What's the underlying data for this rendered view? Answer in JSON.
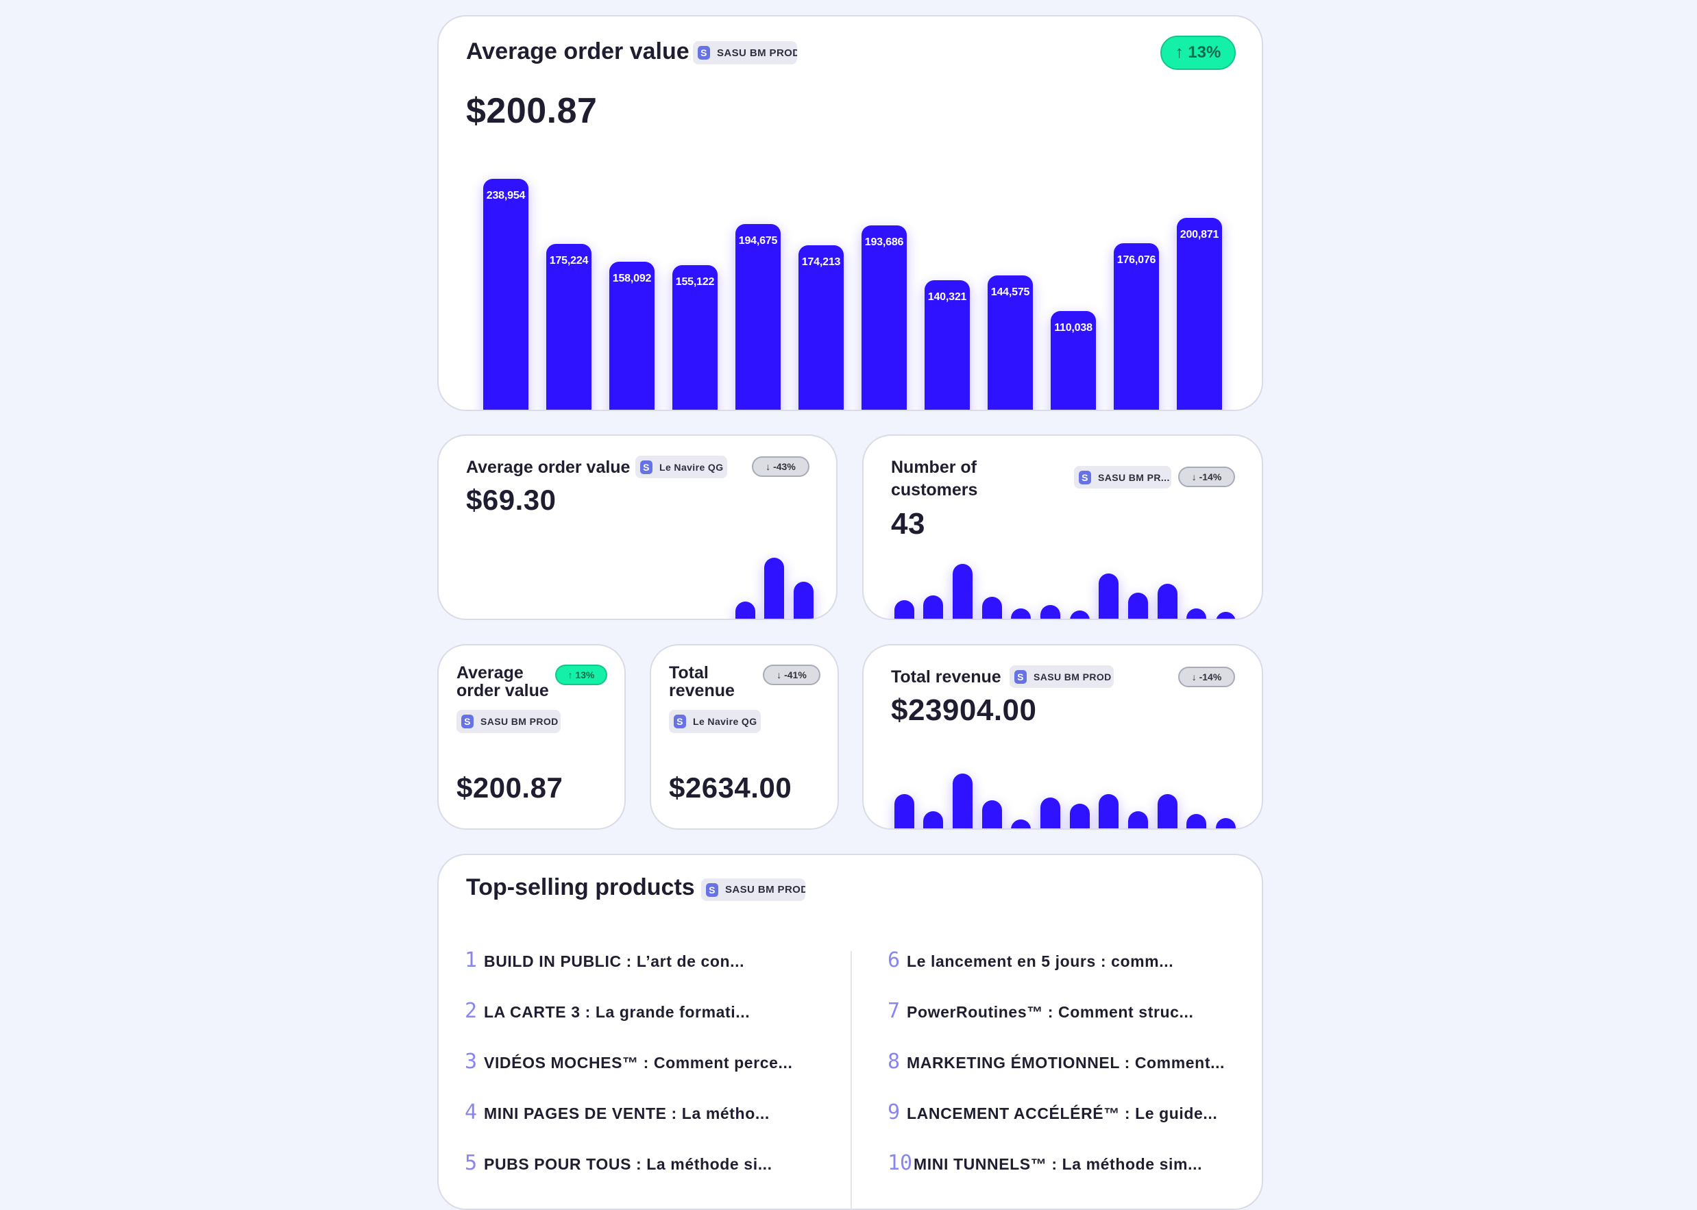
{
  "colors": {
    "accent": "#2f12ff",
    "up": "#14f0a8",
    "stripe": "#6772e5",
    "background": "#f1f4fd"
  },
  "stripe_mark": "S",
  "main_card": {
    "title": "Average order value",
    "account": "SASU BM PROD",
    "trend": "↑ 13%",
    "value": "$200.87",
    "chart_data": {
      "type": "bar",
      "values": [
        238954,
        175224,
        158092,
        155122,
        194675,
        174213,
        193686,
        140321,
        144575,
        110038,
        176076,
        200871
      ],
      "labels": [
        "238,954",
        "175,224",
        "158,092",
        "155,122",
        "194,675",
        "174,213",
        "193,686",
        "140,321",
        "144,575",
        "110,038",
        "176,076",
        "200,871"
      ],
      "ylim": [
        0,
        238954
      ]
    }
  },
  "aov_card": {
    "title": "Average order value",
    "account": "Le Navire QG",
    "trend": "↓ -43%",
    "value": "$69.30",
    "chart_data": {
      "type": "bar",
      "values": [
        0,
        0,
        0,
        0,
        0,
        0,
        0,
        0,
        0,
        0.37,
        1.0,
        0.66
      ]
    }
  },
  "customers_card": {
    "title_line1": "Number of",
    "title_line2": "customers",
    "account": "SASU BM PR...",
    "trend": "↓ -14%",
    "value": "43",
    "chart_data": {
      "type": "bar",
      "values": [
        0.48,
        0.55,
        1.0,
        0.53,
        0.36,
        0.41,
        0.33,
        0.86,
        0.59,
        0.72,
        0.36,
        0.31
      ]
    }
  },
  "small_aov_card": {
    "title_line1": "Average",
    "title_line2": "order value",
    "account": "SASU BM PROD",
    "trend": "↑ 13%",
    "value": "$200.87"
  },
  "small_revenue_card": {
    "title_line1": "Total",
    "title_line2": "revenue",
    "account": "Le Navire QG",
    "trend": "↓ -41%",
    "value": "$2634.00"
  },
  "revenue_card": {
    "title": "Total revenue",
    "account": "SASU BM PROD",
    "trend": "↓ -14%",
    "value": "$23904.00",
    "chart_data": {
      "type": "bar",
      "values": [
        0.71,
        0.46,
        1.0,
        0.62,
        0.34,
        0.66,
        0.57,
        0.71,
        0.46,
        0.71,
        0.42,
        0.36
      ]
    }
  },
  "products_card": {
    "title": "Top-selling products",
    "account": "SASU BM PROD",
    "left": [
      {
        "rank": "1",
        "name": "BUILD IN PUBLIC : L’art de con..."
      },
      {
        "rank": "2",
        "name": "LA CARTE 3 : La grande formati..."
      },
      {
        "rank": "3",
        "name": "VIDÉOS MOCHES™ : Comment perce..."
      },
      {
        "rank": "4",
        "name": "MINI PAGES DE VENTE : La métho..."
      },
      {
        "rank": "5",
        "name": "PUBS POUR TOUS : La méthode si..."
      }
    ],
    "right": [
      {
        "rank": "6",
        "name": "Le lancement en 5 jours : comm..."
      },
      {
        "rank": "7",
        "name": "PowerRoutines™ : Comment struc..."
      },
      {
        "rank": "8",
        "name": "MARKETING ÉMOTIONNEL : Comment..."
      },
      {
        "rank": "9",
        "name": "LANCEMENT ACCÉLÉRÉ™ : Le guide..."
      },
      {
        "rank": "10",
        "name": "MINI TUNNELS™ : La méthode sim..."
      }
    ]
  }
}
